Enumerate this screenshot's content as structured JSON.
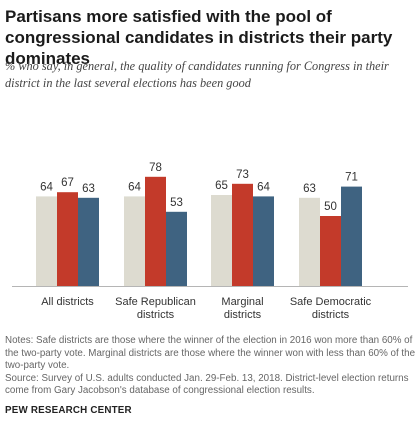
{
  "title": "Partisans more satisfied with the pool of congressional candidates in districts their party dominates",
  "subtitle": "% who say, in general, the quality of candidates running for Congress in their district in the last several elections has been good",
  "notes": "Notes: Safe districts are those where the winner of the election in 2016 won more than 60% of the two-party vote. Marginal districts are those where the winner won with less than 60% of the two-party vote.",
  "source": "Source: Survey of U.S. adults conducted Jan. 29-Feb. 13, 2018. District-level election returns come from Gary Jacobson's database of congressional election results.",
  "brand": "PEW RESEARCH CENTER",
  "chart_data": {
    "type": "bar",
    "categories": [
      [
        "All districts"
      ],
      [
        "Safe Republican",
        "districts"
      ],
      [
        "Marginal",
        "districts"
      ],
      [
        "Safe Democratic",
        "districts"
      ]
    ],
    "series": [
      {
        "values": [
          64,
          64,
          65,
          63
        ],
        "color": "#dddbd0"
      },
      {
        "values": [
          67,
          78,
          73,
          50
        ],
        "color": "#c33a2a"
      },
      {
        "values": [
          63,
          53,
          64,
          71
        ],
        "color": "#3f6381"
      }
    ],
    "ylim": [
      0,
      100
    ],
    "grid": false,
    "legend": "none"
  }
}
